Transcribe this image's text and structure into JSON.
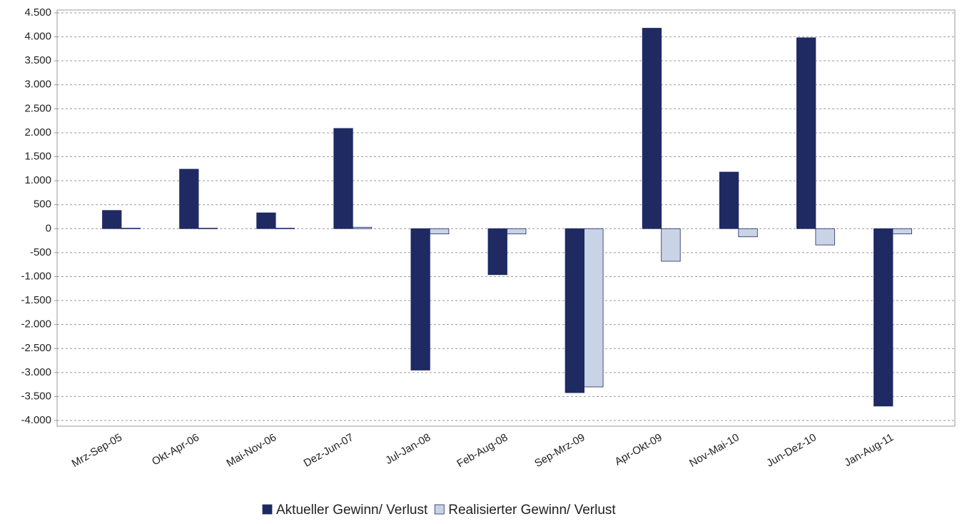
{
  "chart_data": {
    "type": "bar",
    "categories": [
      "Mrz-Sep-05",
      "Okt-Apr-06",
      "Mai-Nov-06",
      "Dez-Jun-07",
      "Jul-Jan-08",
      "Feb-Aug-08",
      "Sep-Mrz-09",
      "Apr-Okt-09",
      "Nov-Mai-10",
      "Jun-Dez-10",
      "Jan-Aug-11"
    ],
    "series": [
      {
        "name": "Aktueller Gewinn/ Verlust",
        "color": "#1f2a63",
        "values": [
          380,
          1240,
          330,
          2090,
          -2950,
          -960,
          -3420,
          4180,
          1180,
          3980,
          -3700
        ]
      },
      {
        "name": "Realisierter Gewinn/ Verlust",
        "color": "#c9d3e6",
        "values": [
          10,
          10,
          10,
          30,
          -110,
          -110,
          -3300,
          -680,
          -170,
          -340,
          -110
        ]
      }
    ],
    "ylim": [
      -4000,
      4500
    ],
    "yticks": [
      {
        "value": -4000,
        "label": "-4.000"
      },
      {
        "value": -3500,
        "label": "-3.500"
      },
      {
        "value": -3000,
        "label": "-3.000"
      },
      {
        "value": -2500,
        "label": "-2.500"
      },
      {
        "value": -2000,
        "label": "-2.000"
      },
      {
        "value": -1500,
        "label": "-1.500"
      },
      {
        "value": -1000,
        "label": "-1.000"
      },
      -500,
      0,
      500,
      {
        "value": 1000,
        "label": "1.000"
      },
      {
        "value": 1500,
        "label": "1.500"
      },
      {
        "value": 2000,
        "label": "2.000"
      },
      {
        "value": 2500,
        "label": "2.500"
      },
      {
        "value": 3000,
        "label": "3.000"
      },
      {
        "value": 3500,
        "label": "3.500"
      },
      {
        "value": 4000,
        "label": "4.000"
      },
      {
        "value": 4500,
        "label": "4.500"
      }
    ],
    "grid": true,
    "legend": "bottom"
  }
}
